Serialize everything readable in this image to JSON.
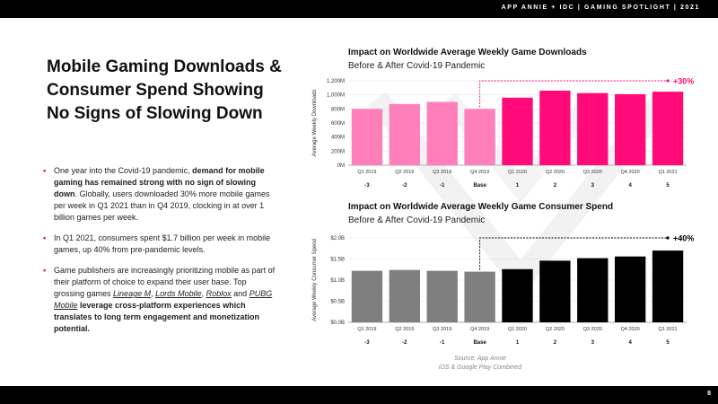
{
  "header": {
    "text": "APP ANNIE + IDC  |  GAMING SPOTLIGHT  |  2021"
  },
  "footer": {
    "page_number": "8"
  },
  "main_title": "Mobile Gaming Downloads & Consumer Spend Showing No Signs of Slowing Down",
  "bullets": [
    {
      "parts": [
        {
          "t": "One year into the Covid-19 pandemic, ",
          "s": "n"
        },
        {
          "t": "demand for mobile gaming has remained strong with no sign of slowing down",
          "s": "b"
        },
        {
          "t": ". Globally, users downloaded 30% more mobile games per week in Q1 2021 than in Q4 2019, clocking in at over 1 billion games per week.",
          "s": "n"
        }
      ]
    },
    {
      "parts": [
        {
          "t": "In Q1 2021, consumers spent $1.7 billion per week in mobile games, up 40% from pre-pandemic levels.",
          "s": "n"
        }
      ]
    },
    {
      "parts": [
        {
          "t": "Game publishers are increasingly prioritizing mobile as part of their platform of choice to expand their user base. Top grossing games ",
          "s": "n"
        },
        {
          "t": "Lineage M",
          "s": "i"
        },
        {
          "t": ", ",
          "s": "n"
        },
        {
          "t": "Lords Mobile",
          "s": "i"
        },
        {
          "t": ", ",
          "s": "n"
        },
        {
          "t": "Roblox",
          "s": "i"
        },
        {
          "t": " and ",
          "s": "n"
        },
        {
          "t": "PUBG Mobile",
          "s": "i"
        },
        {
          "t": " leverage cross-platform experiences which translates to long term engagement and monetization potential.",
          "s": "b"
        }
      ]
    }
  ],
  "source": {
    "line1": "Source: App Annie",
    "line2": "iOS & Google Play Combined"
  },
  "colors": {
    "pink_light": "#ff7fba",
    "pink": "#ff0a78",
    "gray": "#7f7f7f",
    "black": "#000000",
    "accent": "#e6007e"
  },
  "chart_data": [
    {
      "type": "bar",
      "title": "Impact on Worldwide Average Weekly Game Downloads",
      "subtitle": "Before & After Covid-19 Pandemic",
      "ylabel": "Average Weekly Downloads",
      "categories": [
        "Q1 2019",
        "Q2 2019",
        "Q3 2019",
        "Q4 2019",
        "Q1 2020",
        "Q2 2020",
        "Q3 2020",
        "Q4 2020",
        "Q1 2021"
      ],
      "relative_labels": [
        "-3",
        "-2",
        "-1",
        "Base",
        "1",
        "2",
        "3",
        "4",
        "5"
      ],
      "values": [
        800,
        870,
        900,
        800,
        960,
        1060,
        1025,
        1010,
        1045
      ],
      "bar_colors": [
        "#ff7fba",
        "#ff7fba",
        "#ff7fba",
        "#ff7fba",
        "#ff0a78",
        "#ff0a78",
        "#ff0a78",
        "#ff0a78",
        "#ff0a78"
      ],
      "yticks": [
        0,
        200,
        400,
        600,
        800,
        1000,
        1200
      ],
      "ytick_labels": [
        "0M",
        "200M",
        "400M",
        "600M",
        "800M",
        "1,000M",
        "1,200M"
      ],
      "ylim": [
        0,
        1200
      ],
      "annotation": "+30%",
      "annotation_color": "#ff0a78",
      "annotation_from": 3,
      "annotation_to": 8
    },
    {
      "type": "bar",
      "title": "Impact on Worldwide Average Weekly Game Consumer Spend",
      "subtitle": "Before & After Covid-19 Pandemic",
      "ylabel": "Average Weekly Consumer Spend",
      "categories": [
        "Q1 2019",
        "Q2 2019",
        "Q3 2019",
        "Q4 2019",
        "Q1 2020",
        "Q2 2020",
        "Q3 2020",
        "Q4 2020",
        "Q1 2021"
      ],
      "relative_labels": [
        "-3",
        "-2",
        "-1",
        "Base",
        "1",
        "2",
        "3",
        "4",
        "5"
      ],
      "values": [
        1.22,
        1.24,
        1.22,
        1.2,
        1.26,
        1.46,
        1.52,
        1.56,
        1.7
      ],
      "bar_colors": [
        "#7f7f7f",
        "#7f7f7f",
        "#7f7f7f",
        "#7f7f7f",
        "#000000",
        "#000000",
        "#000000",
        "#000000",
        "#000000"
      ],
      "yticks": [
        0,
        0.5,
        1.0,
        1.5,
        2.0
      ],
      "ytick_labels": [
        "$0.0B",
        "$0.5B",
        "$1.0B",
        "$1.5B",
        "$2.0B"
      ],
      "ylim": [
        0,
        2.0
      ],
      "annotation": "+40%",
      "annotation_color": "#000000",
      "annotation_from": 3,
      "annotation_to": 8
    }
  ]
}
